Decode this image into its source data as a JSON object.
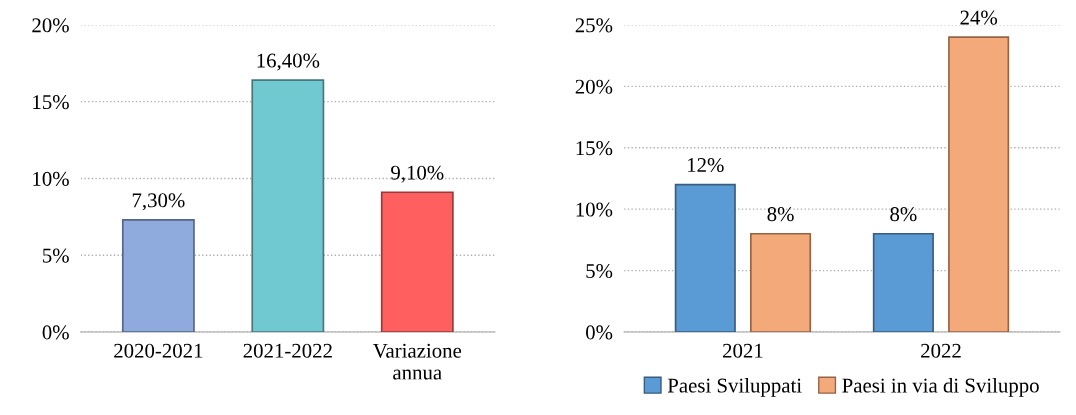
{
  "chart_data": [
    {
      "type": "bar",
      "categories": [
        "2020-2021",
        "2021-2022",
        "Variazione annua"
      ],
      "values": [
        7.3,
        16.4,
        9.1
      ],
      "colors": [
        "#8faadc",
        "#70c8d0",
        "#ff5f5f"
      ],
      "value_labels": [
        "7,30%",
        "16,40%",
        "9,10%"
      ],
      "ylim": [
        0,
        20
      ],
      "yticks": [
        {
          "value": 0,
          "label": "0%"
        },
        {
          "value": 5,
          "label": "5%"
        },
        {
          "value": 10,
          "label": "10%"
        },
        {
          "value": 15,
          "label": "15%"
        },
        {
          "value": 20,
          "label": "20%"
        }
      ],
      "grid": "y",
      "legend": false
    },
    {
      "type": "bar",
      "categories": [
        "2021",
        "2022"
      ],
      "series": [
        {
          "name": "Paesi Sviluppati",
          "color": "#5b9bd5",
          "values": [
            12,
            8
          ],
          "value_labels": [
            "12%",
            "8%"
          ]
        },
        {
          "name": "Paesi in via di Sviluppo",
          "color": "#f4a97a",
          "values": [
            8,
            24
          ],
          "value_labels": [
            "8%",
            "24%"
          ]
        }
      ],
      "ylim": [
        0,
        25
      ],
      "yticks": [
        {
          "value": 0,
          "label": "0%"
        },
        {
          "value": 5,
          "label": "5%"
        },
        {
          "value": 10,
          "label": "10%"
        },
        {
          "value": 15,
          "label": "15%"
        },
        {
          "value": 20,
          "label": "20%"
        },
        {
          "value": 25,
          "label": "25%"
        }
      ],
      "grid": "y",
      "legend": "bottom"
    }
  ]
}
